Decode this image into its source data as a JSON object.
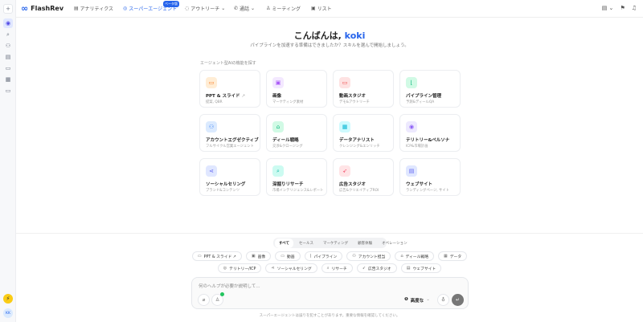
{
  "app": {
    "name": "FlashRev"
  },
  "nav": [
    {
      "label": "アナリティクス",
      "icon": "chart-icon"
    },
    {
      "label": "スーパーエージェント",
      "icon": "agent-icon",
      "badge": "ベータ版",
      "active": true
    },
    {
      "label": "アウトリーチ",
      "icon": "outreach-icon",
      "dropdown": true
    },
    {
      "label": "通話",
      "icon": "phone-icon",
      "dropdown": true
    },
    {
      "label": "ミーティング",
      "icon": "meeting-icon"
    },
    {
      "label": "リスト",
      "icon": "list-icon"
    }
  ],
  "greeting": {
    "prefix": "こんばんは, ",
    "name": "koki"
  },
  "subtitle": "パイプラインを加速する準備はできましたか？スキルを選んで開始しましょう。",
  "section_label": "エージェント型AIの機能を探す",
  "cards": [
    {
      "title": "PPT & スライド",
      "sub": "提案, QBR",
      "icon": "presentation-icon",
      "color": "#f97316",
      "bg": "#ffedd5",
      "external": "↗"
    },
    {
      "title": "画像",
      "sub": "マーケティング素材",
      "icon": "image-icon",
      "color": "#a855f7",
      "bg": "#f3e8ff"
    },
    {
      "title": "動画スタジオ",
      "sub": "デモ&アウトリーチ",
      "icon": "video-icon",
      "color": "#ef4444",
      "bg": "#fee2e2"
    },
    {
      "title": "パイプライン管理",
      "sub": "予測&ディールQA",
      "icon": "chart-line-icon",
      "color": "#10b981",
      "bg": "#d1fae5"
    },
    {
      "title": "アカウントエグゼクティブ",
      "sub": "フルサイクル営業エージェント",
      "icon": "user-icon",
      "color": "#3b82f6",
      "bg": "#dbeafe"
    },
    {
      "title": "ディール戦略",
      "sub": "交渉&クロージング",
      "icon": "briefcase-icon",
      "color": "#10b981",
      "bg": "#d1fae5"
    },
    {
      "title": "データアナリスト",
      "sub": "クレンジング&エンリッチ",
      "icon": "table-icon",
      "color": "#06b6d4",
      "bg": "#cffafe"
    },
    {
      "title": "テリトリー&ペルソナ",
      "sub": "ICP&市場計画",
      "icon": "map-pin-icon",
      "color": "#8b5cf6",
      "bg": "#ede9fe"
    },
    {
      "title": "ソーシャルセリング",
      "sub": "ブランド&コンテンツ",
      "icon": "share-icon",
      "color": "#6366f1",
      "bg": "#e0e7ff"
    },
    {
      "title": "深掘りリサーチ",
      "sub": "市場インテリジェンス&レポート",
      "icon": "search-icon",
      "color": "#14b8a6",
      "bg": "#ccfbf1"
    },
    {
      "title": "広告スタジオ",
      "sub": "広告&クリエイティブROI",
      "icon": "rocket-icon",
      "color": "#f43f5e",
      "bg": "#ffe4e6"
    },
    {
      "title": "ウェブサイト",
      "sub": "ランディングページ, サイト",
      "icon": "document-icon",
      "color": "#6366f1",
      "bg": "#e0e7ff"
    }
  ],
  "filter_tabs": [
    "すべて",
    "セールス",
    "マーケティング",
    "顧客体験",
    "オペレーション"
  ],
  "chips_row1": [
    {
      "label": "PPT & スライド ↗",
      "icon": "▭"
    },
    {
      "label": "画像",
      "icon": "▣"
    },
    {
      "label": "動画",
      "icon": "▭"
    },
    {
      "label": "パイプライン",
      "icon": "⌊"
    },
    {
      "label": "アカウント担当",
      "icon": "⚇"
    },
    {
      "label": "ディール戦略",
      "icon": "⌂"
    },
    {
      "label": "データ",
      "icon": "▦"
    }
  ],
  "chips_row2": [
    {
      "label": "テリトリー/ICP",
      "icon": "◎"
    },
    {
      "label": "ソーシャルセリング",
      "icon": "⋖"
    },
    {
      "label": "リサーチ",
      "icon": "⌕"
    },
    {
      "label": "広告スタジオ",
      "icon": "➶"
    },
    {
      "label": "ウェブサイト",
      "icon": "▤"
    }
  ],
  "composer": {
    "placeholder": "何のヘルプが必要か説明して...",
    "mode": "高度な"
  },
  "footer": "スーパーエージェントは誤りを犯すことがあります。重要な情報を確認してください。",
  "user": {
    "initials": "KK"
  }
}
